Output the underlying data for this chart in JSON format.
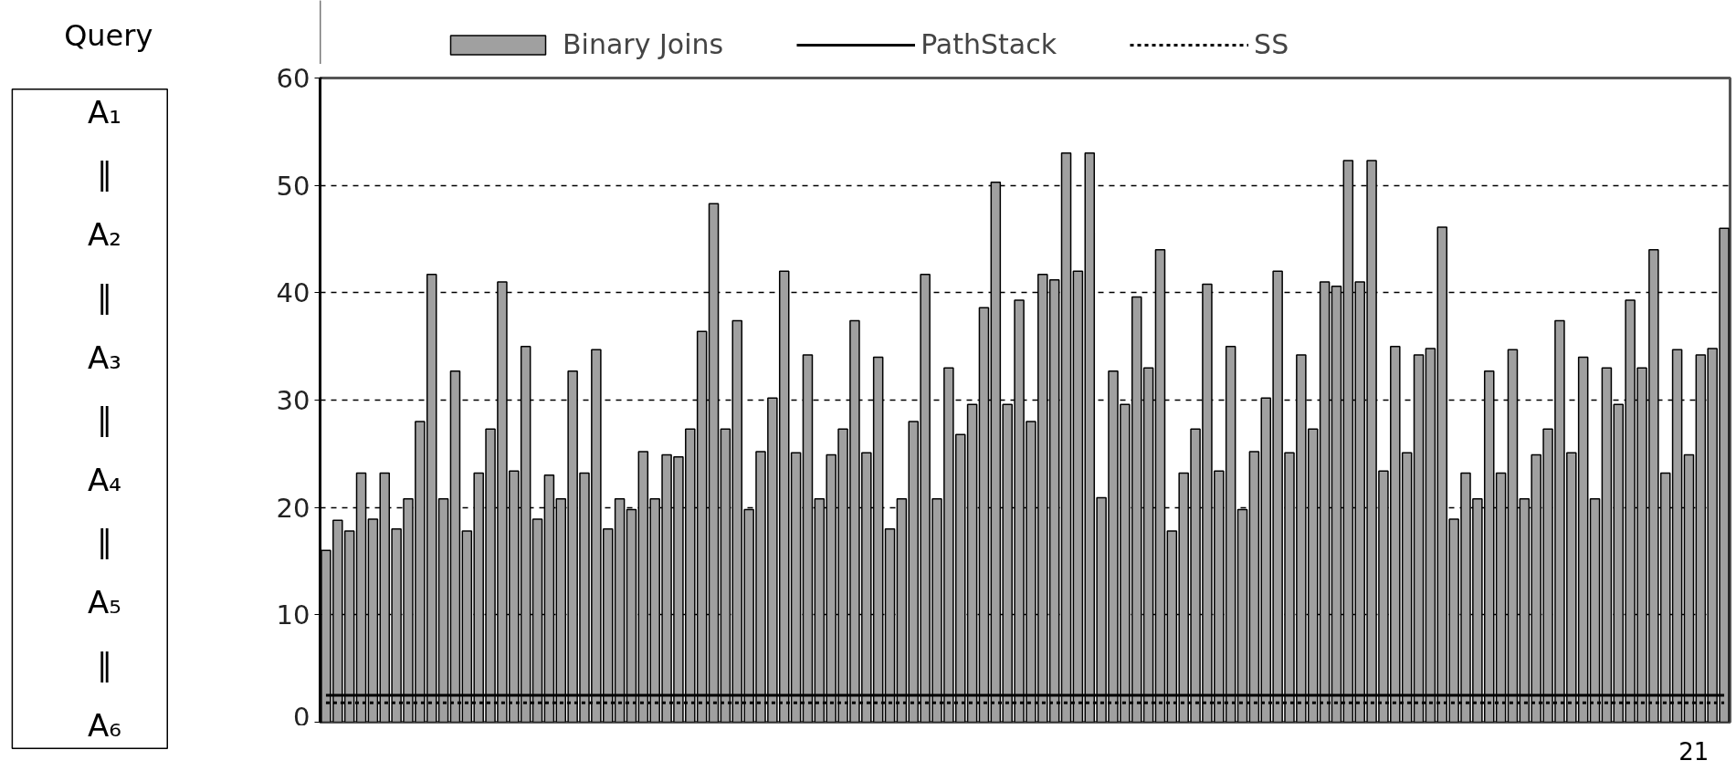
{
  "chart_data": {
    "type": "bar",
    "categories": [
      null,
      null,
      null,
      null,
      null,
      null,
      null,
      null,
      null,
      null,
      null,
      null,
      null,
      null,
      null,
      null,
      null,
      null,
      null,
      null,
      null,
      null,
      null,
      null,
      null,
      null,
      null,
      null,
      null,
      null,
      null,
      null,
      null,
      null,
      null,
      null,
      null,
      null,
      null,
      null,
      null,
      null,
      null,
      null,
      null,
      null,
      null,
      null,
      null,
      null,
      null,
      null,
      null,
      null,
      null,
      null,
      null,
      null,
      null,
      null,
      null,
      null,
      null,
      null,
      null,
      null,
      null,
      null,
      null,
      null,
      null,
      null,
      null,
      null,
      null,
      null,
      null,
      null,
      null,
      null,
      null,
      null,
      null,
      null,
      null,
      null,
      null,
      null,
      null,
      null,
      null,
      null,
      null,
      null,
      null,
      null,
      null,
      null,
      null,
      null,
      null,
      null,
      null,
      null,
      null,
      null,
      null,
      null,
      null,
      null,
      null,
      null,
      null,
      null,
      null,
      null,
      null,
      null,
      null,
      null
    ],
    "series": [
      {
        "name": "Binary Joins",
        "color": "#a0a0a0",
        "values": [
          16,
          18.8,
          17.8,
          23.2,
          18.9,
          23.2,
          18,
          20.8,
          28,
          41.7,
          20.8,
          32.7,
          17.8,
          23.2,
          27.3,
          41,
          23.4,
          35,
          18.9,
          23,
          20.8,
          32.7,
          23.2,
          34.7,
          18,
          20.8,
          19.8,
          25.2,
          20.8,
          24.9,
          24.7,
          27.3,
          36.4,
          48.3,
          27.3,
          37.4,
          19.8,
          25.2,
          30.2,
          42,
          25.1,
          34.2,
          20.8,
          24.9,
          27.3,
          37.4,
          25.1,
          34,
          18,
          20.8,
          28,
          41.7,
          20.8,
          33,
          26.8,
          29.6,
          38.6,
          50.3,
          29.6,
          39.3,
          28,
          41.7,
          41.2,
          53,
          42,
          53,
          20.9,
          32.7,
          29.6,
          39.6,
          33,
          44,
          17.8,
          23.2,
          27.3,
          40.8,
          23.4,
          35,
          19.8,
          25.2,
          30.2,
          42,
          25.1,
          34.2,
          27.3,
          41,
          40.6,
          52.3,
          41,
          52.3,
          23.4,
          35,
          25.1,
          34.2,
          34.8,
          46.1,
          18.9,
          23.2,
          20.8,
          32.7,
          23.2,
          34.7,
          20.8,
          24.9,
          27.3,
          37.4,
          25.1,
          34,
          20.8,
          33,
          29.6,
          39.3,
          33,
          44,
          23.2,
          34.7,
          24.9,
          34.2,
          34.8,
          46
        ]
      },
      {
        "name": "PathStack",
        "type": "line",
        "color": "#000000",
        "line_style": "solid",
        "values": [
          2.5,
          2.5,
          2.5,
          2.5,
          2.5,
          2.5,
          2.5,
          2.5,
          2.5,
          2.5,
          2.5,
          2.5,
          2.5,
          2.5,
          2.5,
          2.5,
          2.5,
          2.5,
          2.5,
          2.5,
          2.5,
          2.5,
          2.5,
          2.5,
          2.5,
          2.5,
          2.5,
          2.5,
          2.5,
          2.5,
          2.5,
          2.5,
          2.5,
          2.5,
          2.5,
          2.5,
          2.5,
          2.5,
          2.5,
          2.5,
          2.5,
          2.5,
          2.5,
          2.5,
          2.5,
          2.5,
          2.5,
          2.5,
          2.5,
          2.5,
          2.5,
          2.5,
          2.5,
          2.5,
          2.5,
          2.5,
          2.5,
          2.5,
          2.5,
          2.5,
          2.5,
          2.5,
          2.5,
          2.5,
          2.5,
          2.5,
          2.5,
          2.5,
          2.5,
          2.5,
          2.5,
          2.5,
          2.5,
          2.5,
          2.5,
          2.5,
          2.5,
          2.5,
          2.5,
          2.5,
          2.5,
          2.5,
          2.5,
          2.5,
          2.5,
          2.5,
          2.5,
          2.5,
          2.5,
          2.5,
          2.5,
          2.5,
          2.5,
          2.5,
          2.5,
          2.5,
          2.5,
          2.5,
          2.5,
          2.5,
          2.5,
          2.5,
          2.5,
          2.5,
          2.5,
          2.5,
          2.5,
          2.5,
          2.5,
          2.5,
          2.5,
          2.5,
          2.5,
          2.5,
          2.5,
          2.5,
          2.5,
          2.5,
          2.5,
          2.5
        ]
      },
      {
        "name": "SS",
        "type": "line",
        "color": "#000000",
        "line_style": "dashed",
        "values": [
          1.8,
          1.8,
          1.8,
          1.8,
          1.8,
          1.8,
          1.8,
          1.8,
          1.8,
          1.8,
          1.8,
          1.8,
          1.8,
          1.8,
          1.8,
          1.8,
          1.8,
          1.8,
          1.8,
          1.8,
          1.8,
          1.8,
          1.8,
          1.8,
          1.8,
          1.8,
          1.8,
          1.8,
          1.8,
          1.8,
          1.8,
          1.8,
          1.8,
          1.8,
          1.8,
          1.8,
          1.8,
          1.8,
          1.8,
          1.8,
          1.8,
          1.8,
          1.8,
          1.8,
          1.8,
          1.8,
          1.8,
          1.8,
          1.8,
          1.8,
          1.8,
          1.8,
          1.8,
          1.8,
          1.8,
          1.8,
          1.8,
          1.8,
          1.8,
          1.8,
          1.8,
          1.8,
          1.8,
          1.8,
          1.8,
          1.8,
          1.8,
          1.8,
          1.8,
          1.8,
          1.8,
          1.8,
          1.8,
          1.8,
          1.8,
          1.8,
          1.8,
          1.8,
          1.8,
          1.8,
          1.8,
          1.8,
          1.8,
          1.8,
          1.8,
          1.8,
          1.8,
          1.8,
          1.8,
          1.8,
          1.8,
          1.8,
          1.8,
          1.8,
          1.8,
          1.8,
          1.8,
          1.8,
          1.8,
          1.8,
          1.8,
          1.8,
          1.8,
          1.8,
          1.8,
          1.8,
          1.8,
          1.8,
          1.8,
          1.8,
          1.8,
          1.8,
          1.8,
          1.8,
          1.8,
          1.8,
          1.8,
          1.8,
          1.8,
          1.8
        ]
      }
    ],
    "ylim": [
      0,
      60
    ],
    "yticks": [
      0,
      10,
      20,
      30,
      40,
      50,
      60
    ],
    "grid": "y",
    "legend": "top",
    "tick_labels": "y",
    "annotations": [
      "Query",
      "A₁",
      "‖",
      "A₂",
      "‖",
      "A₃",
      "‖",
      "A₄",
      "‖",
      "A₅",
      "‖",
      "A₆",
      "21"
    ]
  }
}
